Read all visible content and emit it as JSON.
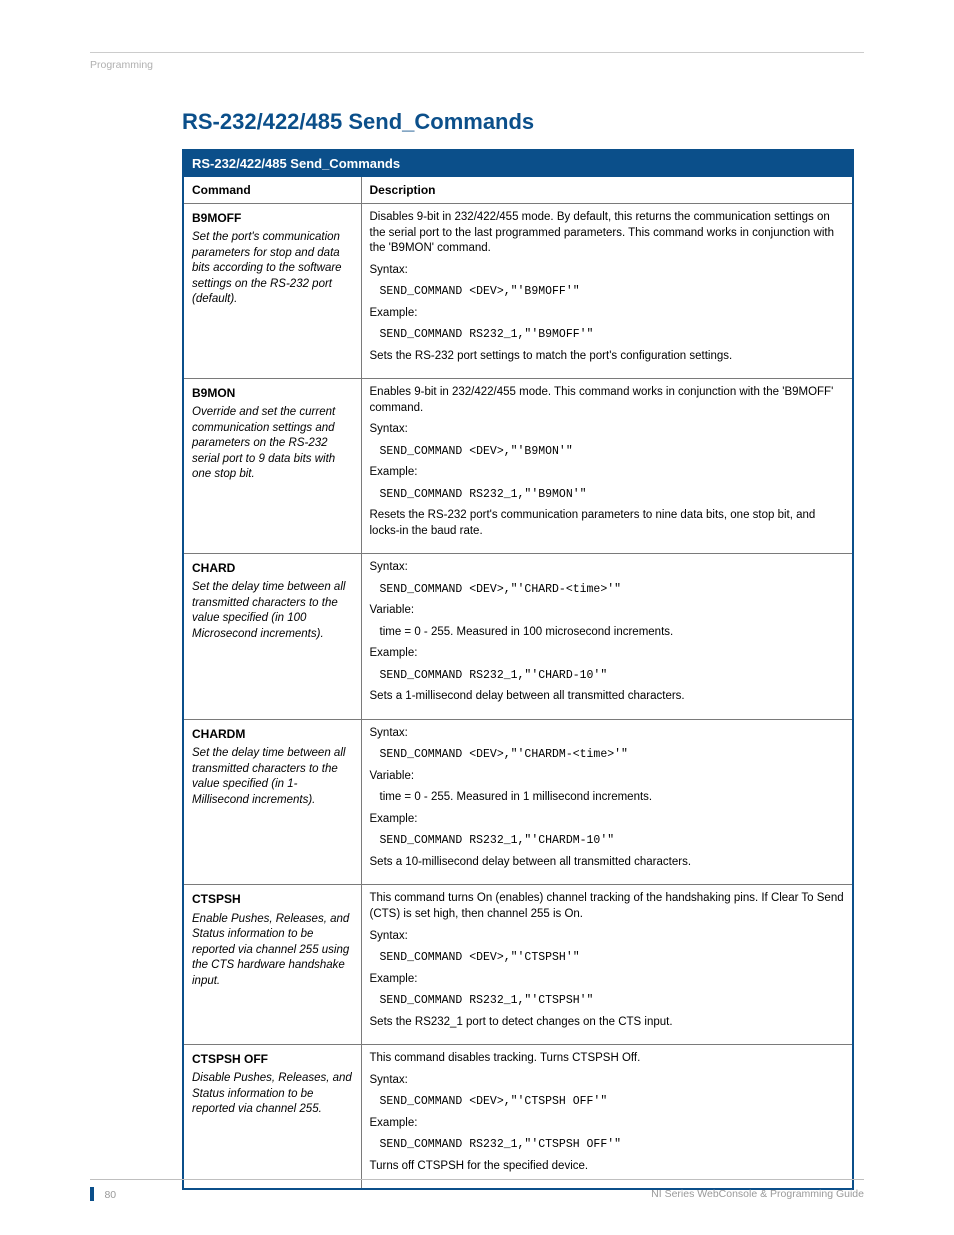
{
  "page": {
    "running_head": "Programming",
    "section_title": "RS-232/422/485 Send_Commands",
    "page_number": "80",
    "doc_title": "NI Series WebConsole & Programming Guide"
  },
  "table": {
    "title_bar": "RS-232/422/485 Send_Commands",
    "col_command": "Command",
    "col_description": "Description",
    "accent_color": "#0b4f8a",
    "border_color": "#7a7a7a",
    "header_bg": "#0b4f8a",
    "header_fg": "#ffffff",
    "body_font_size": 11.5,
    "rows": [
      {
        "name": "B9MOFF",
        "short": "Set the port's communication parameters for stop and data bits according to the software settings on the RS-232 port (default).",
        "intro": "Disables 9-bit in 232/422/455 mode. By default, this returns the communication settings on the serial port to the last programmed parameters. This command works in conjunction with the 'B9MON' command.",
        "syntax_label": "Syntax:",
        "syntax": "SEND_COMMAND <DEV>,\"'B9MOFF'\"",
        "variable_label": "",
        "variable": "",
        "example_label": "Example:",
        "example": "SEND_COMMAND RS232_1,\"'B9MOFF'\"",
        "result": "Sets the RS-232 port settings to match the port's configuration settings."
      },
      {
        "name": "B9MON",
        "short": "Override and set the current communication settings and parameters on the RS-232 serial port to 9 data bits with one stop bit.",
        "intro": "Enables 9-bit in 232/422/455 mode. This command works in conjunction with the 'B9MOFF' command.",
        "syntax_label": "Syntax:",
        "syntax": "SEND_COMMAND <DEV>,\"'B9MON'\"",
        "variable_label": "",
        "variable": "",
        "example_label": "Example:",
        "example": "SEND_COMMAND RS232_1,\"'B9MON'\"",
        "result": "Resets the RS-232 port's communication parameters to nine data bits, one stop bit, and locks-in the baud rate."
      },
      {
        "name": "CHARD",
        "short": "Set the delay time between all transmitted characters to the value specified (in 100 Microsecond increments).",
        "intro": "",
        "syntax_label": "Syntax:",
        "syntax": "SEND_COMMAND <DEV>,\"'CHARD-<time>'\"",
        "variable_label": "Variable:",
        "variable": "time = 0 - 255. Measured in 100 microsecond increments.",
        "example_label": "Example:",
        "example": "SEND_COMMAND RS232_1,\"'CHARD-10'\"",
        "result": "Sets a 1-millisecond delay between all transmitted characters."
      },
      {
        "name": "CHARDM",
        "short": "Set the delay time between all transmitted characters to the value specified (in 1-Millisecond increments).",
        "intro": "",
        "syntax_label": "Syntax:",
        "syntax": "SEND_COMMAND <DEV>,\"'CHARDM-<time>'\"",
        "variable_label": "Variable:",
        "variable": "time = 0 - 255. Measured in 1 millisecond increments.",
        "example_label": "Example:",
        "example": "SEND_COMMAND RS232_1,\"'CHARDM-10'\"",
        "result": "Sets a 10-millisecond delay between all transmitted characters."
      },
      {
        "name": "CTSPSH",
        "short": "Enable Pushes, Releases, and Status information to be reported via channel 255 using the CTS hardware handshake input.",
        "intro": "This command turns On (enables) channel tracking of the handshaking pins. If Clear To Send (CTS) is set high, then channel 255 is On.",
        "syntax_label": "Syntax:",
        "syntax": "SEND_COMMAND <DEV>,\"'CTSPSH'\"",
        "variable_label": "",
        "variable": "",
        "example_label": "Example:",
        "example": "SEND_COMMAND RS232_1,\"'CTSPSH'\"",
        "result": "Sets the RS232_1 port to detect changes on the CTS input."
      },
      {
        "name": "CTSPSH OFF",
        "short": "Disable Pushes, Releases, and Status information to be reported via channel 255.",
        "intro": "This command disables tracking. Turns CTSPSH Off.",
        "syntax_label": "Syntax:",
        "syntax": "SEND_COMMAND <DEV>,\"'CTSPSH OFF'\"",
        "variable_label": "",
        "variable": "",
        "example_label": "Example:",
        "example": "SEND_COMMAND RS232_1,\"'CTSPSH OFF'\"",
        "result": "Turns off CTSPSH for the specified device."
      }
    ]
  }
}
